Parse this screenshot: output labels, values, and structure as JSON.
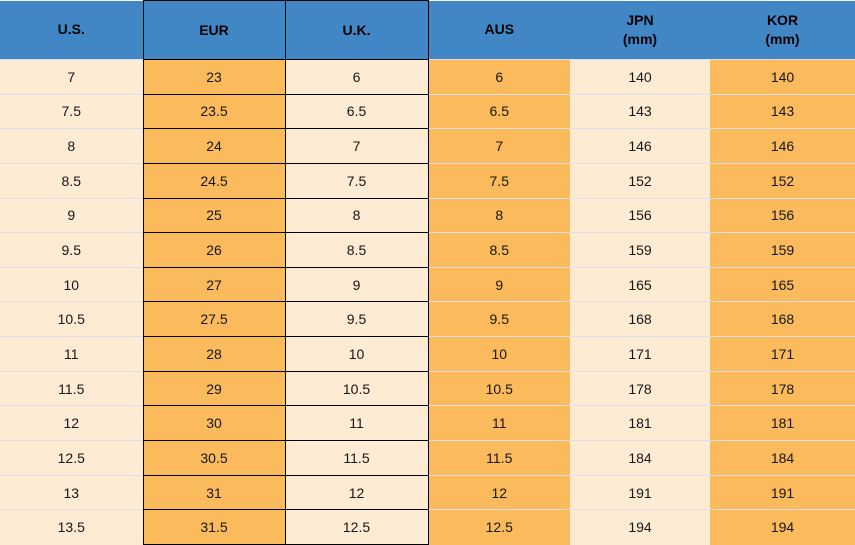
{
  "colors": {
    "header_bg": "#4187C6",
    "orange": "#FBBA5C",
    "cream": "#FDEBD3",
    "black_border": "#000000",
    "row_separator": "#DCE0E6"
  },
  "chart_data": {
    "type": "table",
    "columns": [
      {
        "label": "U.S.",
        "sub": ""
      },
      {
        "label": "EUR",
        "sub": ""
      },
      {
        "label": "U.K.",
        "sub": ""
      },
      {
        "label": "AUS",
        "sub": ""
      },
      {
        "label": "JPN",
        "sub": "(mm)"
      },
      {
        "label": "KOR",
        "sub": "(mm)"
      }
    ],
    "rows": [
      [
        "7",
        "23",
        "6",
        "6",
        "140",
        "140"
      ],
      [
        "7.5",
        "23.5",
        "6.5",
        "6.5",
        "143",
        "143"
      ],
      [
        "8",
        "24",
        "7",
        "7",
        "146",
        "146"
      ],
      [
        "8.5",
        "24.5",
        "7.5",
        "7.5",
        "152",
        "152"
      ],
      [
        "9",
        "25",
        "8",
        "8",
        "156",
        "156"
      ],
      [
        "9.5",
        "26",
        "8.5",
        "8.5",
        "159",
        "159"
      ],
      [
        "10",
        "27",
        "9",
        "9",
        "165",
        "165"
      ],
      [
        "10.5",
        "27.5",
        "9.5",
        "9.5",
        "168",
        "168"
      ],
      [
        "11",
        "28",
        "10",
        "10",
        "171",
        "171"
      ],
      [
        "11.5",
        "29",
        "10.5",
        "10.5",
        "178",
        "178"
      ],
      [
        "12",
        "30",
        "11",
        "11",
        "181",
        "181"
      ],
      [
        "12.5",
        "30.5",
        "11.5",
        "11.5",
        "184",
        "184"
      ],
      [
        "13",
        "31",
        "12",
        "12",
        "191",
        "191"
      ],
      [
        "13.5",
        "31.5",
        "12.5",
        "12.5",
        "194",
        "194"
      ]
    ]
  }
}
